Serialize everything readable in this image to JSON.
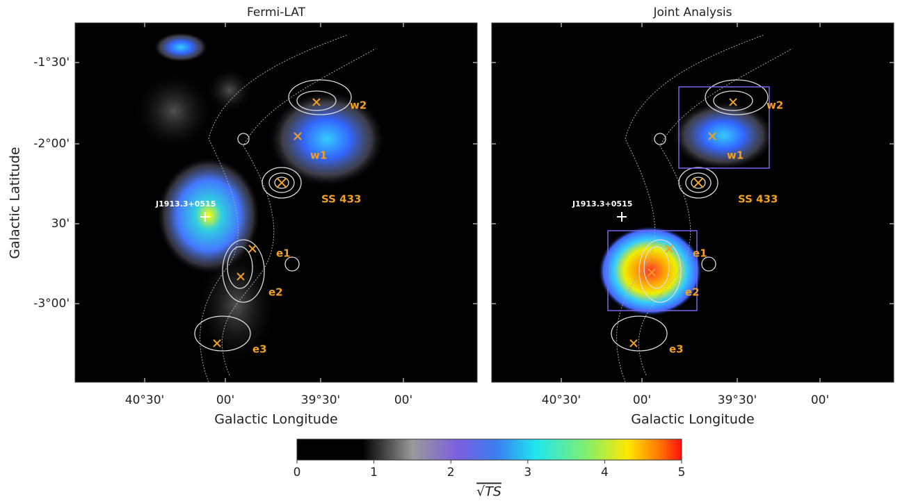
{
  "panels": [
    {
      "title": "Fermi-LAT",
      "xlabel": "Galactic Longitude",
      "ylabel": "Galactic Latitude",
      "xticks": [
        "40°30'",
        "00'",
        "39°30'",
        "00'"
      ],
      "yticks": [
        "-1°30'",
        "-2°00'",
        "30'",
        "-3°00'"
      ],
      "labels": [
        "w2",
        "w1",
        "SS 433",
        "J1913.3+0515",
        "e1",
        "e2",
        "e3"
      ]
    },
    {
      "title": "Joint Analysis",
      "xlabel": "Galactic Longitude",
      "xticks": [
        "40°30'",
        "00'",
        "39°30'",
        "00'"
      ],
      "labels": [
        "w2",
        "w1",
        "SS 433",
        "J1913.3+0515",
        "e1",
        "e2",
        "e3"
      ]
    }
  ],
  "colorbar": {
    "lim": [
      0,
      5
    ],
    "ticks": [
      0,
      1,
      2,
      3,
      4,
      5
    ],
    "label": "√TS"
  }
}
